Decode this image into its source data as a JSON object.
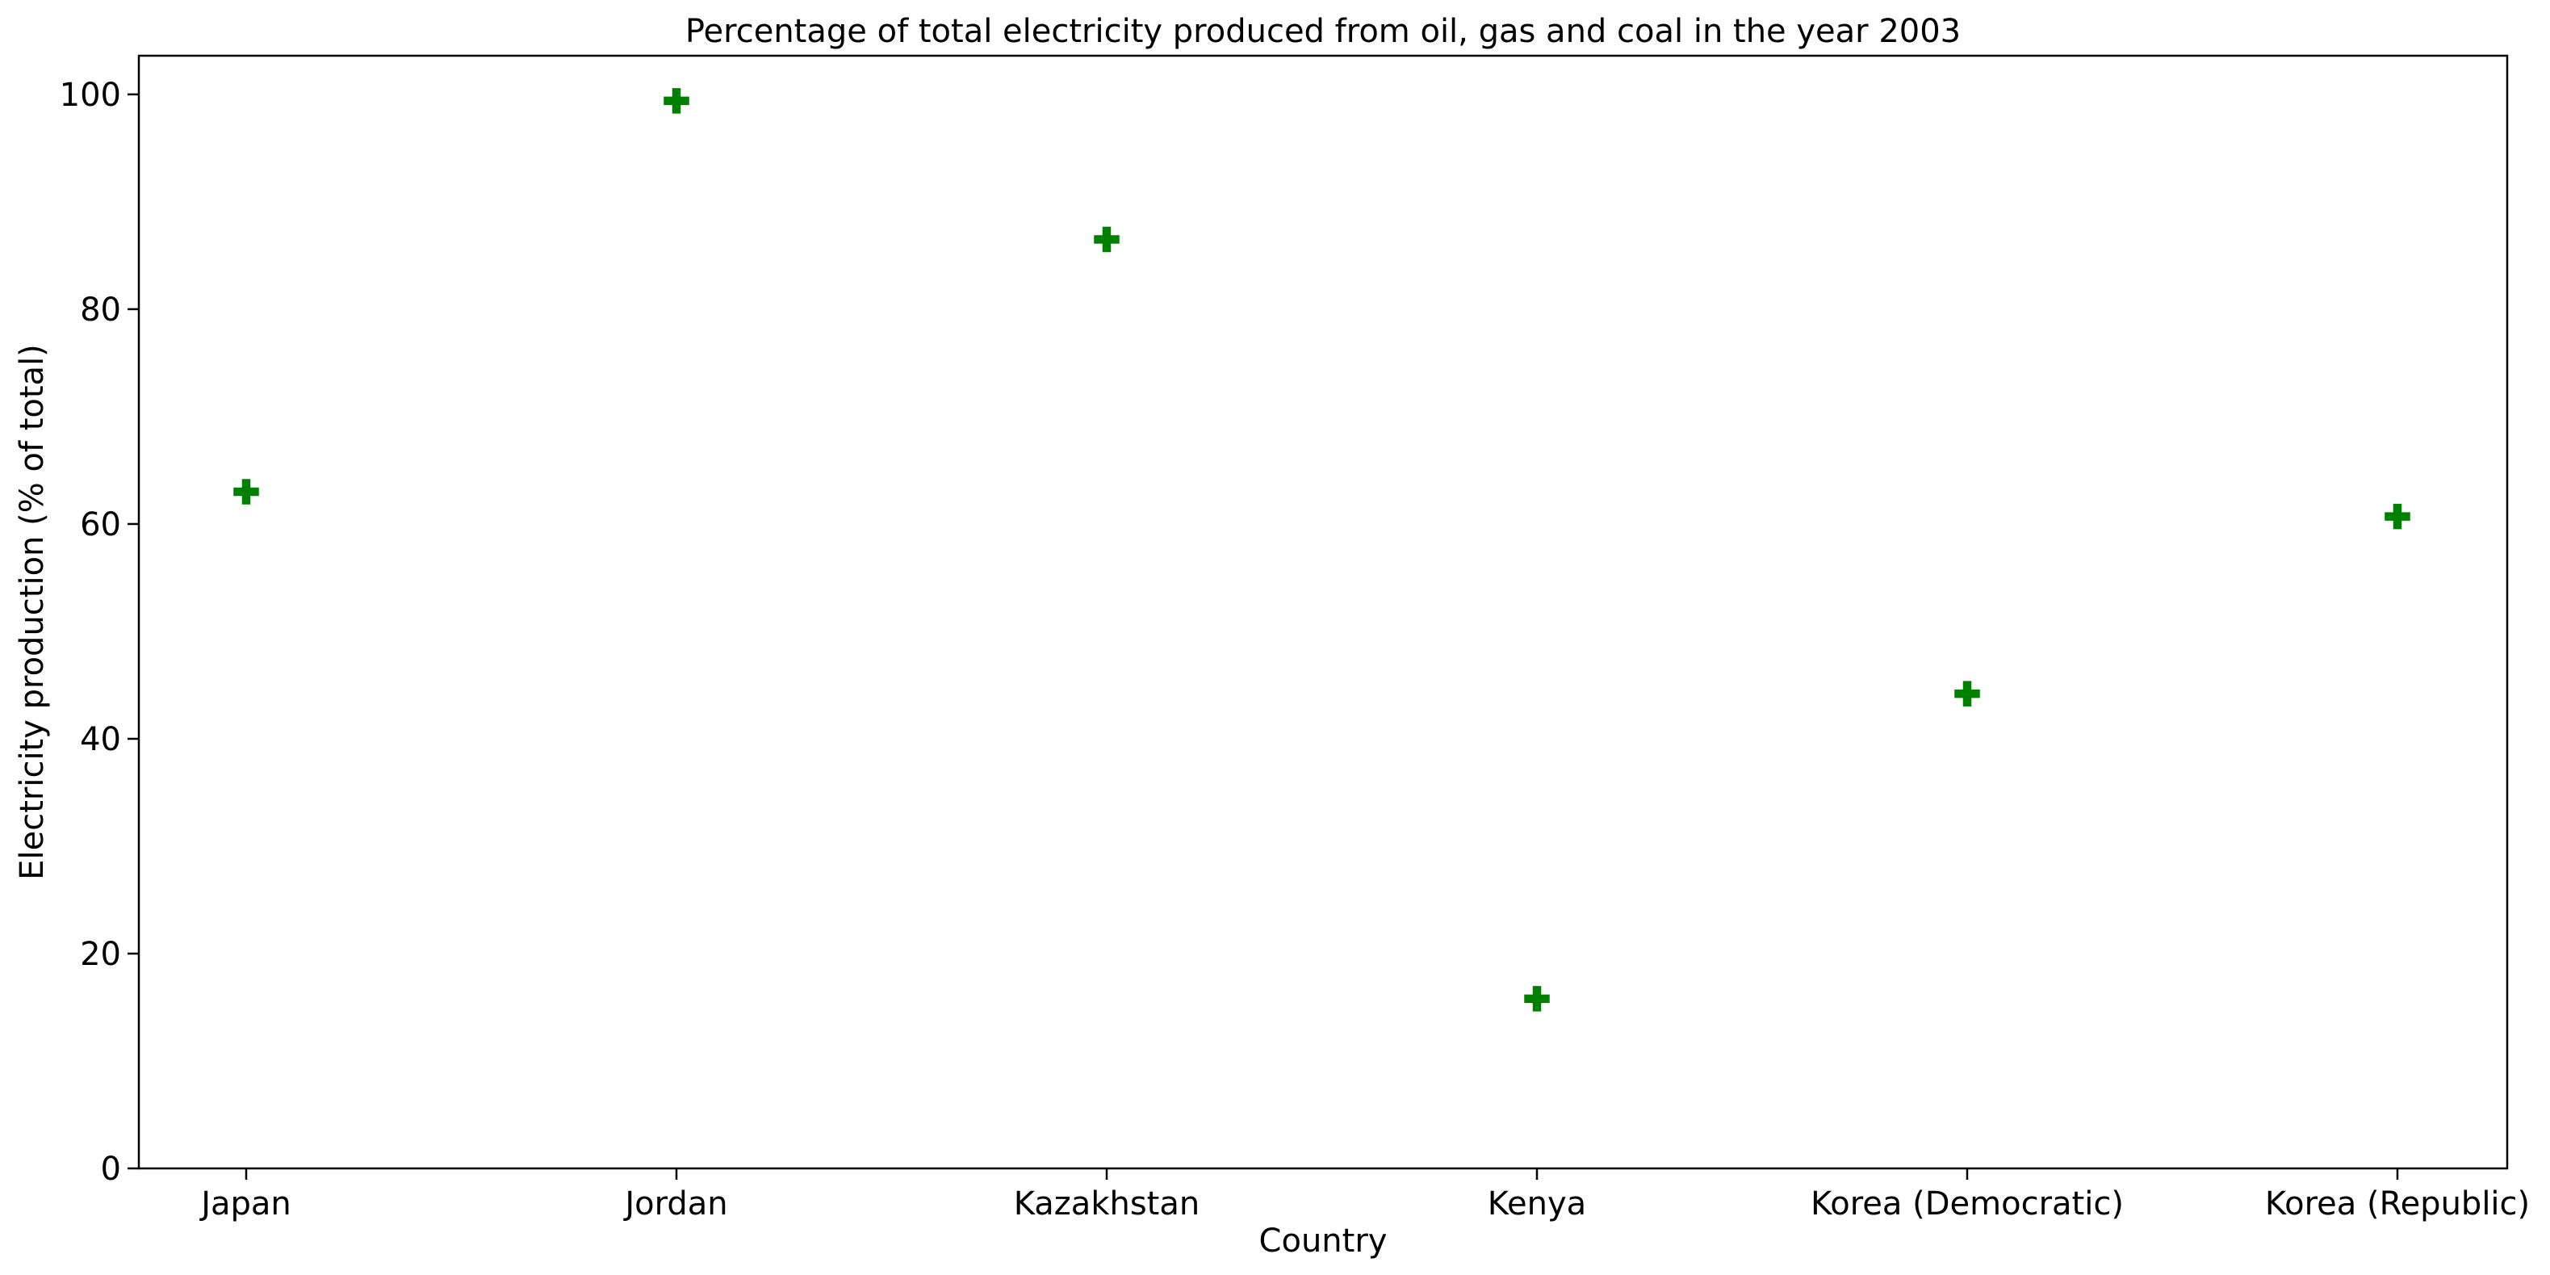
{
  "chart_data": {
    "type": "scatter",
    "title": "Percentage of total electricity produced from oil, gas and coal in the year 2003",
    "xlabel": "Country",
    "ylabel": "Electricity production (% of total)",
    "categories": [
      "Japan",
      "Jordan",
      "Kazakhstan",
      "Kenya",
      "Korea (Democratic)",
      "Korea (Republic)"
    ],
    "values": [
      63.0,
      99.4,
      86.5,
      15.8,
      44.2,
      60.7
    ],
    "ylim": [
      0,
      103.6
    ],
    "yticks": [
      0,
      20,
      40,
      60,
      80,
      100
    ],
    "marker": "plus",
    "marker_color": "#008000",
    "grid": false,
    "legend": "none"
  }
}
